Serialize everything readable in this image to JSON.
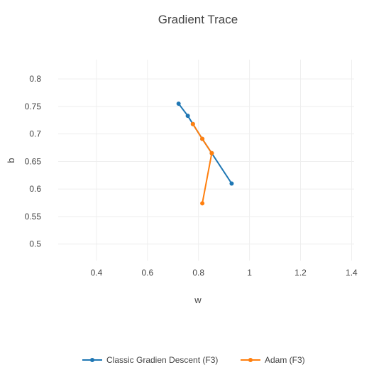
{
  "chart_data": {
    "type": "line",
    "title": "Gradient Trace",
    "xlabel": "w",
    "ylabel": "b",
    "xlim": [
      0.25,
      1.41
    ],
    "ylim": [
      0.47,
      0.835
    ],
    "x_ticks": [
      0.4,
      0.6,
      0.8,
      1,
      1.2,
      1.4
    ],
    "x_tick_labels": [
      "0.4",
      "0.6",
      "0.8",
      "1",
      "1.2",
      "1.4"
    ],
    "y_ticks": [
      0.5,
      0.55,
      0.6,
      0.65,
      0.7,
      0.75,
      0.8
    ],
    "y_tick_labels": [
      "0.5",
      "0.55",
      "0.6",
      "0.65",
      "0.7",
      "0.75",
      "0.8"
    ],
    "grid": true,
    "legend_position": "bottom-center",
    "series": [
      {
        "name": "Classic Gradien Descent (F3)",
        "color": "#1f77b4",
        "x": [
          0.93,
          0.852,
          0.815,
          0.778,
          0.758,
          0.722
        ],
        "y": [
          0.61,
          0.665,
          0.691,
          0.718,
          0.733,
          0.755
        ]
      },
      {
        "name": "Adam (F3)",
        "color": "#ff7f0e",
        "x": [
          0.815,
          0.852,
          0.815,
          0.778
        ],
        "y": [
          0.574,
          0.665,
          0.691,
          0.718
        ]
      }
    ]
  }
}
